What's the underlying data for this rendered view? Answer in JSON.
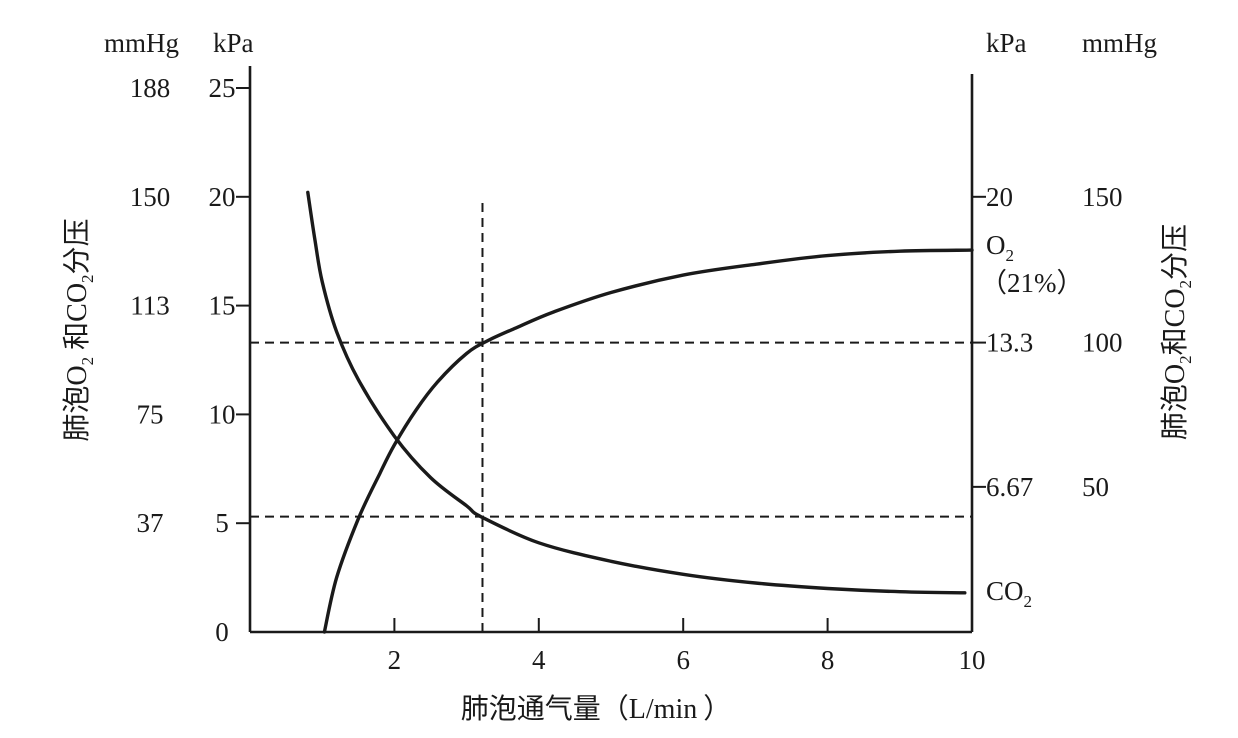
{
  "chart_data": {
    "type": "line",
    "xlabel": {
      "text": "肺泡通气量",
      "paren_open": "（",
      "unit": "L/min",
      "paren_close": "）"
    },
    "xlim": [
      0,
      10
    ],
    "x_ticks": [
      "2",
      "4",
      "6",
      "8",
      "10"
    ],
    "ylim": [
      0,
      25
    ],
    "left_axis": {
      "kpa_unit": "kPa",
      "mmhg_unit": "mmHg",
      "kpa_ticks": [
        {
          "value": 0,
          "label": "0"
        },
        {
          "value": 5,
          "label": "5"
        },
        {
          "value": 10,
          "label": "10"
        },
        {
          "value": 15,
          "label": "15"
        },
        {
          "value": 20,
          "label": "20"
        },
        {
          "value": 25,
          "label": "25"
        }
      ],
      "mmhg_ticks": [
        {
          "value": 5,
          "label": "37"
        },
        {
          "value": 10,
          "label": "75"
        },
        {
          "value": 15,
          "label": "113"
        },
        {
          "value": 20,
          "label": "150"
        },
        {
          "value": 25,
          "label": "188"
        }
      ],
      "title": {
        "a": "肺泡O",
        "sub": "2",
        "b": " 和CO",
        "sub2": "2",
        "c": "分压"
      }
    },
    "right_axis": {
      "kpa_unit": "kPa",
      "mmhg_unit": "mmHg",
      "ticks": [
        {
          "value": 6.67,
          "kpa": "6.67",
          "mmhg": "50"
        },
        {
          "value": 13.3,
          "kpa": "13.3",
          "mmhg": "100"
        },
        {
          "value": 20,
          "kpa": "20",
          "mmhg": "150"
        }
      ],
      "title": {
        "a": "肺泡O",
        "sub": "2",
        "b": "和CO",
        "sub2": "2",
        "c": "分压"
      }
    },
    "series": [
      {
        "name": "O2",
        "label_main": "O",
        "label_sub": "2",
        "label_note": "（21%）",
        "points": [
          [
            1.03,
            0
          ],
          [
            1.2,
            2.5
          ],
          [
            1.5,
            5.2
          ],
          [
            1.8,
            7.3
          ],
          [
            2.0,
            8.6
          ],
          [
            2.3,
            10.2
          ],
          [
            2.6,
            11.5
          ],
          [
            3.0,
            12.8
          ],
          [
            3.3,
            13.4
          ],
          [
            3.7,
            14.0
          ],
          [
            4.2,
            14.7
          ],
          [
            5.0,
            15.6
          ],
          [
            6.0,
            16.4
          ],
          [
            7.0,
            16.9
          ],
          [
            8.0,
            17.3
          ],
          [
            9.0,
            17.5
          ],
          [
            10.0,
            17.55
          ]
        ]
      },
      {
        "name": "CO2",
        "label_main": "CO",
        "label_sub": "2",
        "points": [
          [
            0.8,
            20.2
          ],
          [
            0.9,
            18.0
          ],
          [
            1.0,
            16.1
          ],
          [
            1.2,
            13.8
          ],
          [
            1.5,
            11.6
          ],
          [
            2.0,
            9.0
          ],
          [
            2.5,
            7.1
          ],
          [
            3.0,
            5.8
          ],
          [
            3.2,
            5.3
          ],
          [
            4.0,
            4.1
          ],
          [
            5.0,
            3.25
          ],
          [
            6.0,
            2.65
          ],
          [
            7.0,
            2.25
          ],
          [
            8.0,
            2.0
          ],
          [
            9.0,
            1.85
          ],
          [
            9.9,
            1.8
          ]
        ]
      }
    ],
    "reference_lines": [
      {
        "orientation": "vertical",
        "x": 3.22,
        "y_from": 0,
        "y_to": 19.8
      },
      {
        "orientation": "horizontal",
        "y": 13.3,
        "x_from": 0,
        "x_to": 10
      },
      {
        "orientation": "horizontal",
        "y": 5.3,
        "x_from": 0,
        "x_to": 10
      }
    ]
  }
}
